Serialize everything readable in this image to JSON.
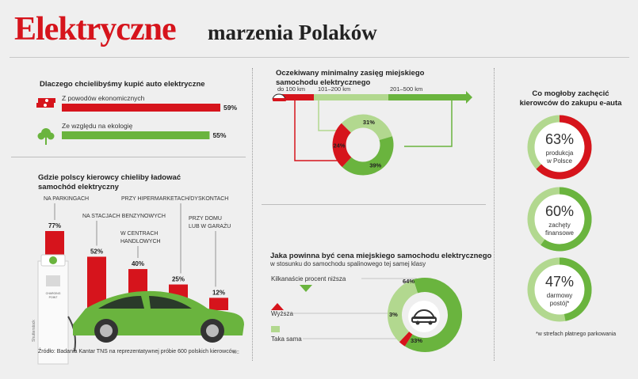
{
  "header": {
    "title": "Elektryczne",
    "subtitle": "marzenia Polaków"
  },
  "colors": {
    "red": "#d6141c",
    "green": "#6ab43e",
    "light_green": "#b2d88f",
    "grey_line": "#9a9a9a"
  },
  "reasons": {
    "heading": "Dlaczego chcielibyśmy kupić auto elektryczne",
    "icons": [
      "money-icon",
      "tree-icon"
    ]
  },
  "charging": {
    "heading_line1": "Gdzie polscy kierowcy chieliby ładować",
    "heading_line2": "samochód elektryczny",
    "label_lines": [
      [
        "NA PARKINGACH"
      ],
      [
        "NA STACJACH BENZYNOWYCH"
      ],
      [
        "W CENTRACH",
        "HANDLOWYCH"
      ],
      [
        "PRZY HIPERMARKETACH/DYSKONTACH"
      ],
      [
        "PRZY DOMU",
        "LUB W GARAŻU"
      ]
    ],
    "station_text": [
      "CHARGING",
      "POINT"
    ],
    "photo_credit": "Shutterstock"
  },
  "range": {
    "heading_line1": "Oczekiwany minimalny zasięg miejskiego",
    "heading_line2": "samochodu elektrycznego"
  },
  "price": {
    "heading": "Jaka powinna być cena miejskiego samochodu elektrycznego",
    "subheading": "w stosunku do samochodu spalinowego tej samej klasy"
  },
  "incentives": {
    "heading_line1": "Co mogłoby zachęcić",
    "heading_line2": "kierowców do zakupu e-auta",
    "footnote": "*w strefach płatnego parkowania"
  },
  "footer": {
    "source": "Źródło: Badania Kantar TNS na reprezentatywnej próbie 600 polskich kierowców",
    "initials": "MC"
  },
  "chart_data": [
    {
      "type": "bar",
      "orientation": "horizontal",
      "title": "Dlaczego chcielibyśmy kupić auto elektryczne",
      "categories": [
        "Z powodów ekonomicznych",
        "Ze względu na ekologię"
      ],
      "values": [
        59,
        55
      ],
      "value_labels": [
        "59%",
        "55%"
      ],
      "unit": "%",
      "xlim": [
        0,
        59
      ],
      "bar_colors": [
        "#d6141c",
        "#6ab43e"
      ]
    },
    {
      "type": "bar",
      "title": "Gdzie polscy kierowcy chieliby ładować samochód elektryczny",
      "categories": [
        "NA PARKINGACH",
        "NA STACJACH BENZYNOWYCH",
        "W CENTRACH HANDLOWYCH",
        "PRZY HIPERMARKETACH/DYSKONTACH",
        "PRZY DOMU LUB W GARAŻU"
      ],
      "values": [
        77,
        52,
        40,
        25,
        12
      ],
      "value_labels": [
        "77%",
        "52%",
        "40%",
        "25%",
        "12%"
      ],
      "unit": "%",
      "ylim": [
        0,
        77
      ],
      "bar_color": "#d6141c"
    },
    {
      "type": "pie",
      "style": "donut",
      "title": "Oczekiwany minimalny zasięg miejskiego samochodu elektrycznego",
      "categories": [
        "do 100 km",
        "101–200 km",
        "201–500 km"
      ],
      "values": [
        24,
        31,
        39
      ],
      "value_labels": [
        "24%",
        "31%",
        "39%"
      ],
      "colors": [
        "#d6141c",
        "#b2d88f",
        "#6ab43e"
      ]
    },
    {
      "type": "pie",
      "style": "donut",
      "title": "Jaka powinna być cena miejskiego samochodu elektrycznego",
      "categories": [
        "Kilkanaście procent niższa",
        "Wyższa",
        "Taka sama"
      ],
      "values": [
        64,
        3,
        33
      ],
      "value_labels": [
        "64%",
        "3%",
        "33%"
      ],
      "colors": [
        "#6ab43e",
        "#d6141c",
        "#b2d88f"
      ]
    },
    {
      "type": "pie",
      "style": "rings",
      "title": "Co mogłoby zachęcić kierowców do zakupu e-auta",
      "categories": [
        "produkcja w Polsce",
        "zachęty finansowe",
        "darmowy postój*"
      ],
      "label_lines": [
        [
          "produkcja",
          "w Polsce"
        ],
        [
          "zachęty",
          "finansowe"
        ],
        [
          "darmowy",
          "postój*"
        ]
      ],
      "values": [
        63,
        60,
        47
      ],
      "value_labels": [
        "63%",
        "60%",
        "47%"
      ],
      "colors": [
        "#d6141c",
        "#6ab43e",
        "#6ab43e"
      ]
    }
  ]
}
